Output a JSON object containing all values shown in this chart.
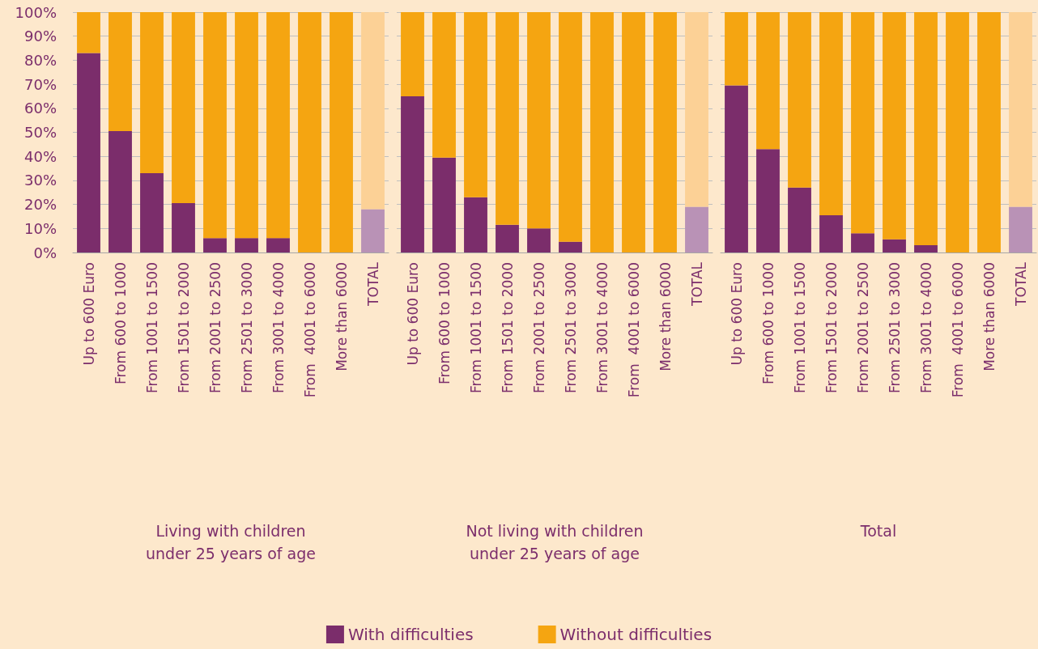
{
  "chart_data": [
    {
      "type": "bar",
      "stacked": true,
      "xlabel": "Living with children under 25 years of age",
      "categories": [
        "Up to 600 Euro",
        "From 600 to 1000",
        "From 1001 to 1500",
        "From 1501 to 2000",
        "From 2001 to 2500",
        "From 2501 to 3000",
        "From 3001 to 4000",
        "From  4001 to 6000",
        "More than 6000",
        "TOTAL"
      ],
      "series": [
        {
          "color": "#7b2d6b",
          "colors": [
            "#7b2d6b",
            "#7b2d6b",
            "#7b2d6b",
            "#7b2d6b",
            "#7b2d6b",
            "#7b2d6b",
            "#7b2d6b",
            "#7b2d6b",
            "#7b2d6b",
            "#b992b6"
          ],
          "values": [
            83,
            50.5,
            33,
            20.5,
            6,
            6,
            6,
            0,
            0,
            18
          ]
        },
        {
          "color": "#f5a511",
          "colors": [
            "#f5a511",
            "#f5a511",
            "#f5a511",
            "#f5a511",
            "#f5a511",
            "#f5a511",
            "#f5a511",
            "#f5a511",
            "#f5a511",
            "#fcd196"
          ],
          "values": [
            17,
            49.5,
            67,
            79.5,
            94,
            94,
            94,
            100,
            100,
            82
          ]
        }
      ],
      "ylim": [
        0,
        100
      ],
      "yticks": [
        {
          "value": 0,
          "label": "0%"
        },
        {
          "value": 10,
          "label": "10%"
        },
        {
          "value": 20,
          "label": "20%"
        },
        {
          "value": 30,
          "label": "30%"
        },
        {
          "value": 40,
          "label": "40%"
        },
        {
          "value": 50,
          "label": "50%"
        },
        {
          "value": 60,
          "label": "60%"
        },
        {
          "value": 70,
          "label": "70%"
        },
        {
          "value": 80,
          "label": "80%"
        },
        {
          "value": 90,
          "label": "90%"
        },
        {
          "value": 100,
          "label": "100%"
        }
      ],
      "grid": "y"
    },
    {
      "type": "bar",
      "stacked": true,
      "xlabel": "Not living with children under 25 years of age",
      "categories": [
        "Up to 600 Euro",
        "From 600 to 1000",
        "From 1001 to 1500",
        "From 1501 to 2000",
        "From 2001 to 2500",
        "From 2501 to 3000",
        "From 3001 to 4000",
        "From  4001 to 6000",
        "More than 6000",
        "TOTAL"
      ],
      "series": [
        {
          "name": "With difficulties",
          "color": "#7b2d6b",
          "colors": [
            "#7b2d6b",
            "#7b2d6b",
            "#7b2d6b",
            "#7b2d6b",
            "#7b2d6b",
            "#7b2d6b",
            "#7b2d6b",
            "#7b2d6b",
            "#7b2d6b",
            "#b992b6"
          ],
          "values": [
            65,
            39.5,
            23,
            11.5,
            10,
            4.5,
            0,
            0,
            0,
            19
          ]
        },
        {
          "name": "Without difficulties",
          "color": "#f5a511",
          "colors": [
            "#f5a511",
            "#f5a511",
            "#f5a511",
            "#f5a511",
            "#f5a511",
            "#f5a511",
            "#f5a511",
            "#f5a511",
            "#f5a511",
            "#fcd196"
          ],
          "values": [
            35,
            60.5,
            77,
            88.5,
            90,
            95.5,
            100,
            100,
            100,
            81
          ]
        }
      ],
      "ylim": [
        0,
        100
      ],
      "yticks": [
        {
          "value": 0,
          "label": null
        },
        {
          "value": 10,
          "label": null
        },
        {
          "value": 20,
          "label": null
        },
        {
          "value": 30,
          "label": null
        },
        {
          "value": 40,
          "label": null
        },
        {
          "value": 50,
          "label": null
        },
        {
          "value": 60,
          "label": null
        },
        {
          "value": 70,
          "label": null
        },
        {
          "value": 80,
          "label": null
        },
        {
          "value": 90,
          "label": null
        },
        {
          "value": 100,
          "label": null
        }
      ],
      "grid": "y",
      "tick_labels": "x",
      "legend": "bottom"
    },
    {
      "type": "bar",
      "stacked": true,
      "xlabel": "Total",
      "categories": [
        "Up to 600 Euro",
        "From 600 to 1000",
        "From 1001 to 1500",
        "From 1501 to 2000",
        "From 2001 to 2500",
        "From 2501 to 3000",
        "From 3001 to 4000",
        "From  4001 to 6000",
        "More than 6000",
        "TOTAL"
      ],
      "series": [
        {
          "color": "#7b2d6b",
          "colors": [
            "#7b2d6b",
            "#7b2d6b",
            "#7b2d6b",
            "#7b2d6b",
            "#7b2d6b",
            "#7b2d6b",
            "#7b2d6b",
            "#7b2d6b",
            "#7b2d6b",
            "#b992b6"
          ],
          "values": [
            69.5,
            43,
            27,
            15.5,
            8,
            5.5,
            3,
            0,
            0,
            19
          ]
        },
        {
          "color": "#f5a511",
          "colors": [
            "#f5a511",
            "#f5a511",
            "#f5a511",
            "#f5a511",
            "#f5a511",
            "#f5a511",
            "#f5a511",
            "#f5a511",
            "#f5a511",
            "#fcd196"
          ],
          "values": [
            30.5,
            57,
            73,
            84.5,
            92,
            94.5,
            97,
            100,
            100,
            81
          ]
        }
      ],
      "ylim": [
        0,
        100
      ],
      "yticks": [
        {
          "value": 0,
          "label": null
        },
        {
          "value": 10,
          "label": null
        },
        {
          "value": 20,
          "label": null
        },
        {
          "value": 30,
          "label": null
        },
        {
          "value": 40,
          "label": null
        },
        {
          "value": 50,
          "label": null
        },
        {
          "value": 60,
          "label": null
        },
        {
          "value": 70,
          "label": null
        },
        {
          "value": 80,
          "label": null
        },
        {
          "value": 90,
          "label": null
        },
        {
          "value": 100,
          "label": null
        }
      ],
      "grid": "y",
      "tick_labels": "x"
    }
  ]
}
